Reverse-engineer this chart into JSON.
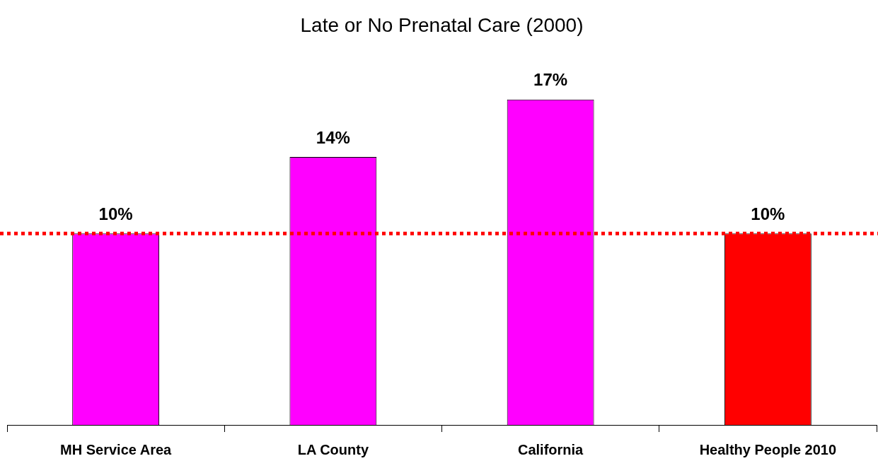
{
  "chart_data": {
    "type": "bar",
    "title": "Late or No Prenatal Care (2000)",
    "categories": [
      "MH Service Area",
      "LA County",
      "California",
      "Healthy People 2010"
    ],
    "values": [
      10,
      14,
      17,
      10
    ],
    "colors": [
      "#ff00ff",
      "#ff00ff",
      "#ff00ff",
      "#ff0000"
    ],
    "value_labels": [
      "10%",
      "14%",
      "17%",
      "10%"
    ],
    "ref_lines": [
      {
        "axis": "y",
        "value": 10,
        "color": "#ff0000",
        "line_style": "dotted"
      }
    ],
    "grid": false,
    "legend": false
  }
}
